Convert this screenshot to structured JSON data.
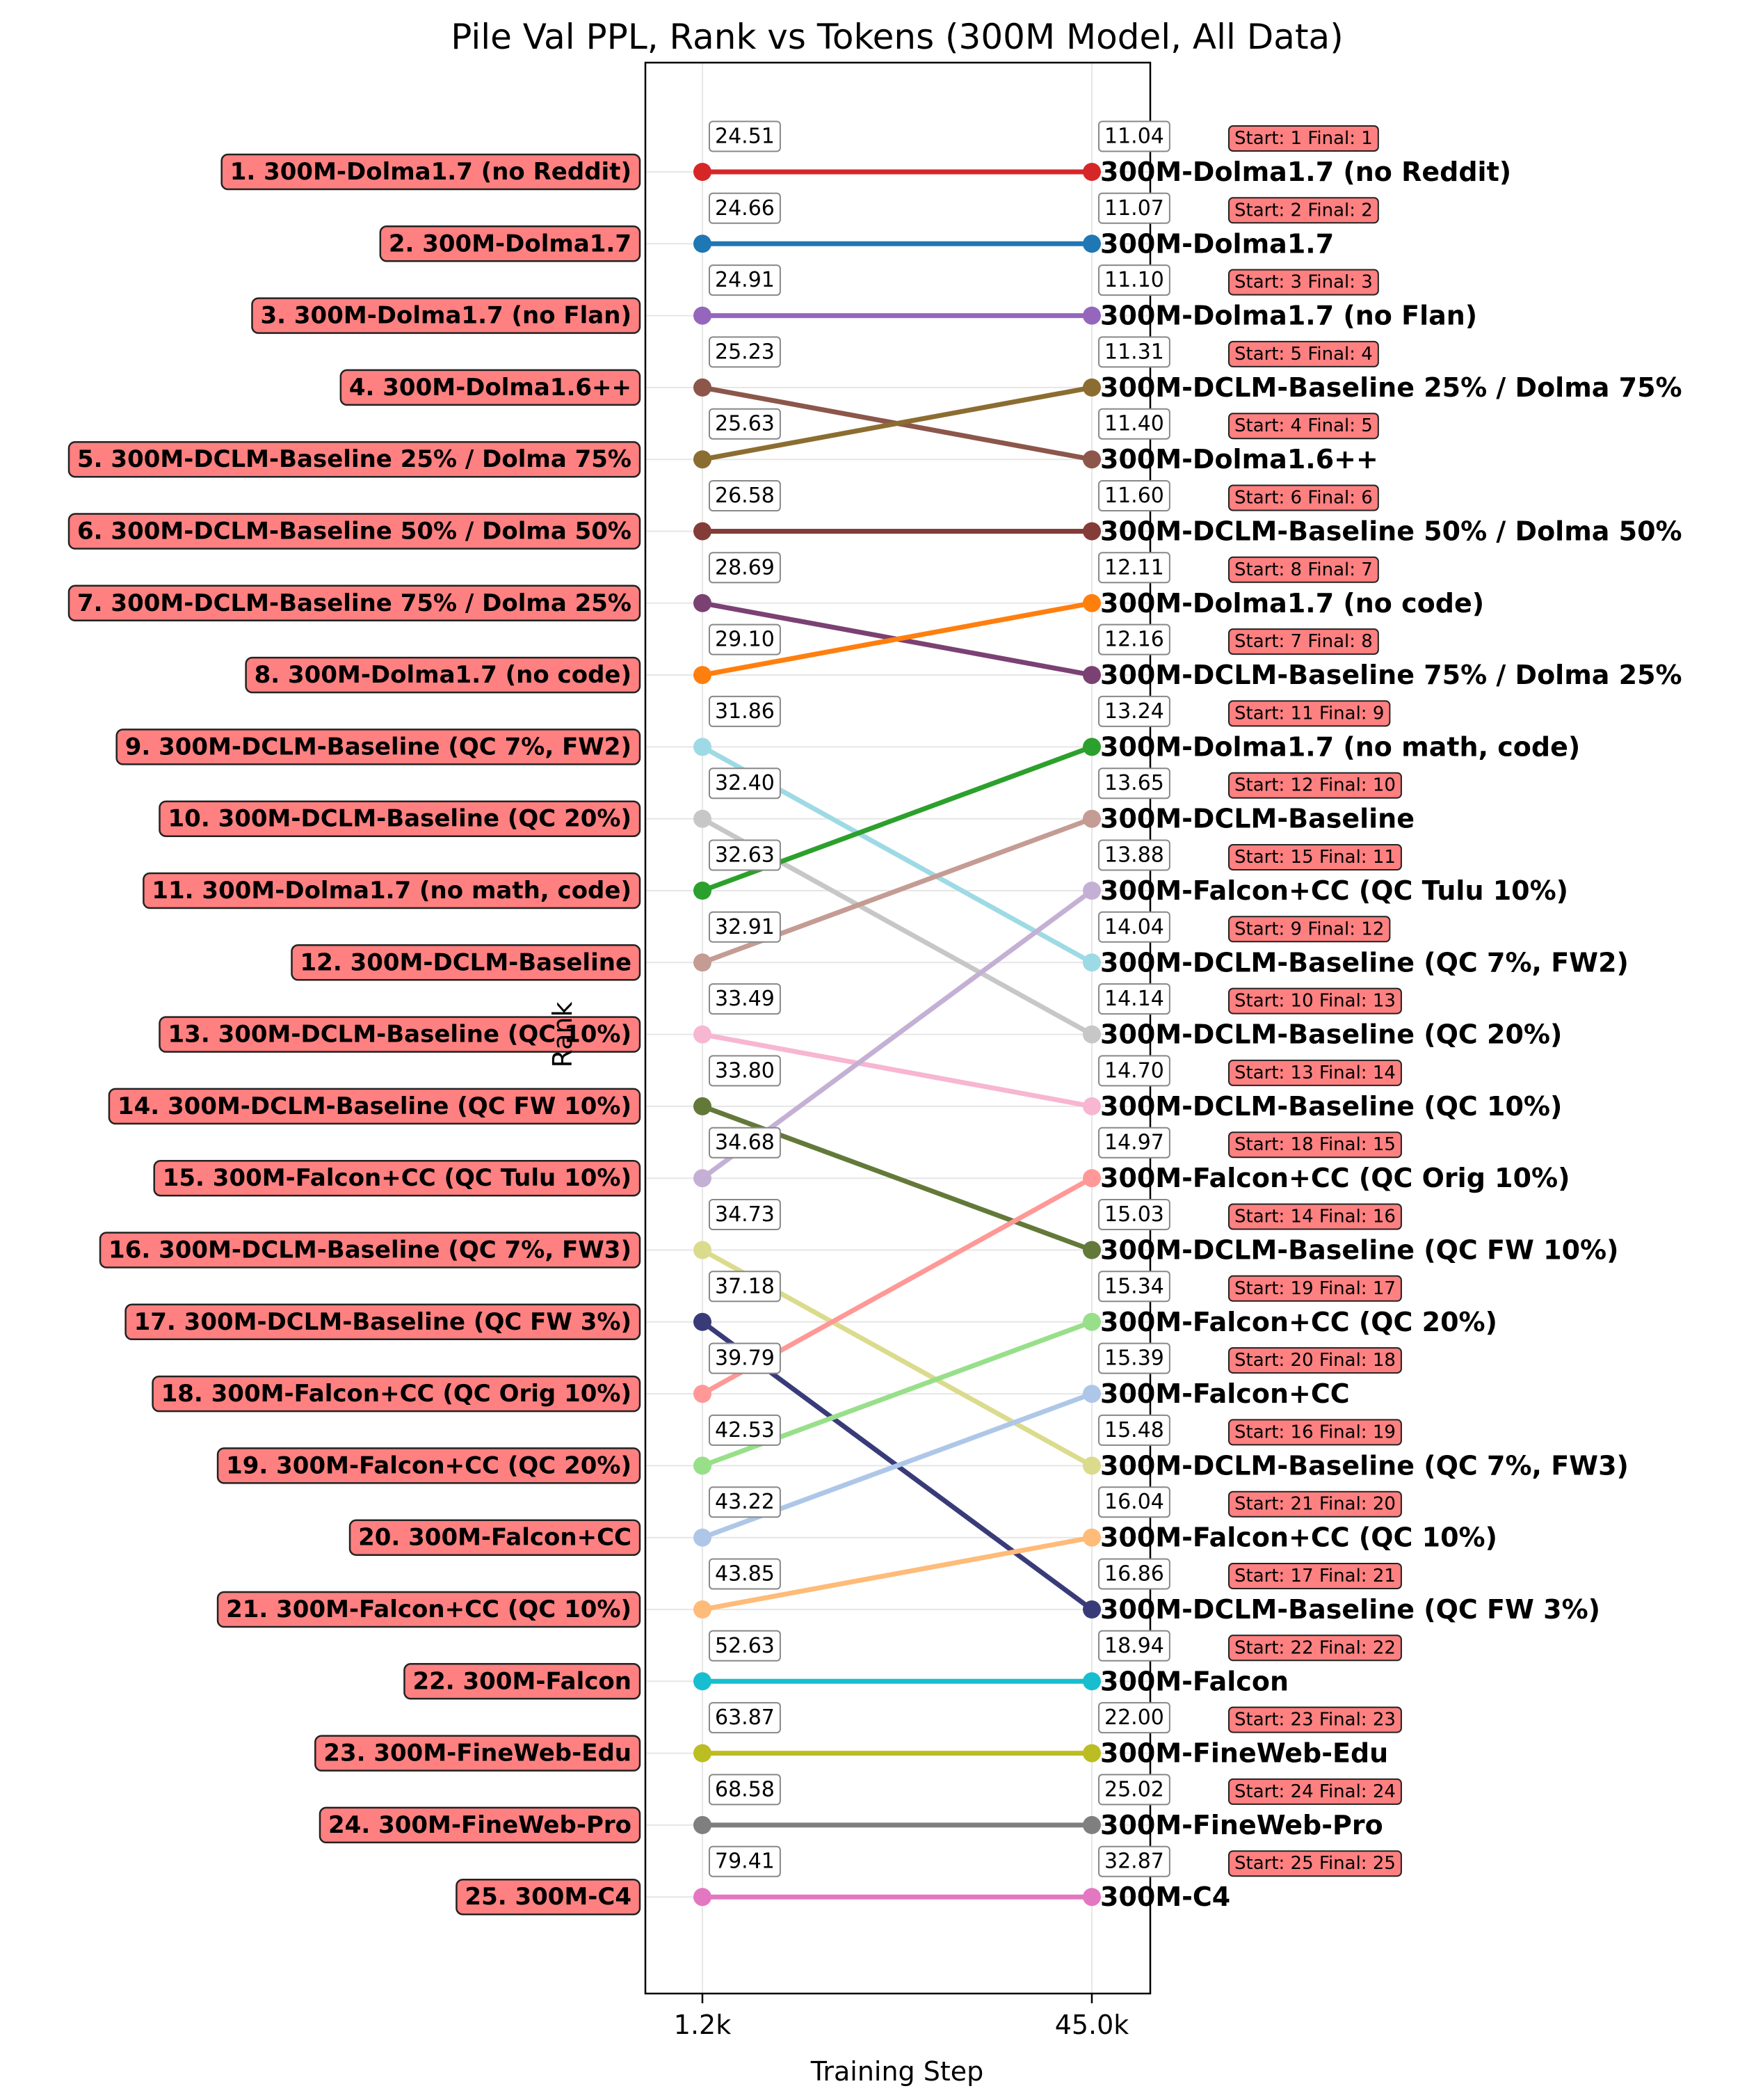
{
  "chart_data": {
    "type": "line",
    "title": "Pile Val PPL, Rank vs Tokens (300M Model, All Data)",
    "xlabel": "Training Step",
    "ylabel": "Rank",
    "x": [
      "1.2k",
      "45.0k"
    ],
    "ylim": [
      27,
      0
    ],
    "grid": true,
    "colors": {
      "label_box_fill": "#ff8080",
      "badge_fill": "#ff8080",
      "value_box_edge": "#888888"
    },
    "series": [
      {
        "name": "300M-Dolma1.7 (no Reddit)",
        "left_label": "1. 300M-Dolma1.7 (no Reddit)",
        "start_rank": 1,
        "final_rank": 1,
        "start_value": "24.51",
        "final_value": "11.04",
        "badge": "Start: 1 Final: 1",
        "color": "#d62728"
      },
      {
        "name": "300M-Dolma1.7",
        "left_label": "2. 300M-Dolma1.7",
        "start_rank": 2,
        "final_rank": 2,
        "start_value": "24.66",
        "final_value": "11.07",
        "badge": "Start: 2 Final: 2",
        "color": "#1f77b4"
      },
      {
        "name": "300M-Dolma1.7 (no Flan)",
        "left_label": "3. 300M-Dolma1.7 (no Flan)",
        "start_rank": 3,
        "final_rank": 3,
        "start_value": "24.91",
        "final_value": "11.10",
        "badge": "Start: 3 Final: 3",
        "color": "#9467bd"
      },
      {
        "name": "300M-Dolma1.6++",
        "left_label": "4. 300M-Dolma1.6++",
        "start_rank": 4,
        "final_rank": 5,
        "start_value": "25.23",
        "final_value": "11.40",
        "badge": "Start: 4 Final: 5",
        "color": "#8c564b"
      },
      {
        "name": "300M-DCLM-Baseline 25% / Dolma 75%",
        "left_label": "5. 300M-DCLM-Baseline 25% / Dolma 75%",
        "start_rank": 5,
        "final_rank": 4,
        "start_value": "25.63",
        "final_value": "11.31",
        "badge": "Start: 5 Final: 4",
        "color": "#8c6d31"
      },
      {
        "name": "300M-DCLM-Baseline 50% / Dolma 50%",
        "left_label": "6. 300M-DCLM-Baseline 50% / Dolma 50%",
        "start_rank": 6,
        "final_rank": 6,
        "start_value": "26.58",
        "final_value": "11.60",
        "badge": "Start: 6 Final: 6",
        "color": "#843c39"
      },
      {
        "name": "300M-DCLM-Baseline 75% / Dolma 25%",
        "left_label": "7. 300M-DCLM-Baseline 75% / Dolma 25%",
        "start_rank": 7,
        "final_rank": 8,
        "start_value": "28.69",
        "final_value": "12.16",
        "badge": "Start: 7 Final: 8",
        "color": "#7b4173"
      },
      {
        "name": "300M-Dolma1.7 (no code)",
        "left_label": "8. 300M-Dolma1.7 (no code)",
        "start_rank": 8,
        "final_rank": 7,
        "start_value": "29.10",
        "final_value": "12.11",
        "badge": "Start: 8 Final: 7",
        "color": "#ff7f0e"
      },
      {
        "name": "300M-DCLM-Baseline (QC 7%, FW2)",
        "left_label": "9. 300M-DCLM-Baseline (QC 7%, FW2)",
        "start_rank": 9,
        "final_rank": 12,
        "start_value": "31.86",
        "final_value": "14.04",
        "badge": "Start: 9 Final: 12",
        "color": "#9edae5"
      },
      {
        "name": "300M-DCLM-Baseline (QC 20%)",
        "left_label": "10. 300M-DCLM-Baseline (QC 20%)",
        "start_rank": 10,
        "final_rank": 13,
        "start_value": "32.40",
        "final_value": "14.14",
        "badge": "Start: 10 Final: 13",
        "color": "#c7c7c7"
      },
      {
        "name": "300M-Dolma1.7 (no math, code)",
        "left_label": "11. 300M-Dolma1.7 (no math, code)",
        "start_rank": 11,
        "final_rank": 9,
        "start_value": "32.63",
        "final_value": "13.24",
        "badge": "Start: 11 Final: 9",
        "color": "#2ca02c"
      },
      {
        "name": "300M-DCLM-Baseline",
        "left_label": "12. 300M-DCLM-Baseline",
        "start_rank": 12,
        "final_rank": 10,
        "start_value": "32.91",
        "final_value": "13.65",
        "badge": "Start: 12 Final: 10",
        "color": "#c49c94"
      },
      {
        "name": "300M-DCLM-Baseline (QC 10%)",
        "left_label": "13. 300M-DCLM-Baseline (QC 10%)",
        "start_rank": 13,
        "final_rank": 14,
        "start_value": "33.49",
        "final_value": "14.70",
        "badge": "Start: 13 Final: 14",
        "color": "#f7b6d2"
      },
      {
        "name": "300M-DCLM-Baseline (QC FW 10%)",
        "left_label": "14. 300M-DCLM-Baseline (QC FW 10%)",
        "start_rank": 14,
        "final_rank": 16,
        "start_value": "33.80",
        "final_value": "15.03",
        "badge": "Start: 14 Final: 16",
        "color": "#637939"
      },
      {
        "name": "300M-Falcon+CC (QC Tulu 10%)",
        "left_label": "15. 300M-Falcon+CC (QC Tulu 10%)",
        "start_rank": 15,
        "final_rank": 11,
        "start_value": "34.68",
        "final_value": "13.88",
        "badge": "Start: 15 Final: 11",
        "color": "#c5b0d5"
      },
      {
        "name": "300M-DCLM-Baseline (QC 7%, FW3)",
        "left_label": "16. 300M-DCLM-Baseline (QC 7%, FW3)",
        "start_rank": 16,
        "final_rank": 19,
        "start_value": "34.73",
        "final_value": "15.48",
        "badge": "Start: 16 Final: 19",
        "color": "#dbdb8d"
      },
      {
        "name": "300M-DCLM-Baseline (QC FW 3%)",
        "left_label": "17. 300M-DCLM-Baseline (QC FW 3%)",
        "start_rank": 17,
        "final_rank": 21,
        "start_value": "37.18",
        "final_value": "16.86",
        "badge": "Start: 17 Final: 21",
        "color": "#393b79"
      },
      {
        "name": "300M-Falcon+CC (QC Orig 10%)",
        "left_label": "18. 300M-Falcon+CC (QC Orig 10%)",
        "start_rank": 18,
        "final_rank": 15,
        "start_value": "39.79",
        "final_value": "14.97",
        "badge": "Start: 18 Final: 15",
        "color": "#ff9896"
      },
      {
        "name": "300M-Falcon+CC (QC 20%)",
        "left_label": "19. 300M-Falcon+CC (QC 20%)",
        "start_rank": 19,
        "final_rank": 17,
        "start_value": "42.53",
        "final_value": "15.34",
        "badge": "Start: 19 Final: 17",
        "color": "#98df8a"
      },
      {
        "name": "300M-Falcon+CC",
        "left_label": "20. 300M-Falcon+CC",
        "start_rank": 20,
        "final_rank": 18,
        "start_value": "43.22",
        "final_value": "15.39",
        "badge": "Start: 20 Final: 18",
        "color": "#aec7e8"
      },
      {
        "name": "300M-Falcon+CC (QC 10%)",
        "left_label": "21. 300M-Falcon+CC (QC 10%)",
        "start_rank": 21,
        "final_rank": 20,
        "start_value": "43.85",
        "final_value": "16.04",
        "badge": "Start: 21 Final: 20",
        "color": "#ffbb78"
      },
      {
        "name": "300M-Falcon",
        "left_label": "22. 300M-Falcon",
        "start_rank": 22,
        "final_rank": 22,
        "start_value": "52.63",
        "final_value": "18.94",
        "badge": "Start: 22 Final: 22",
        "color": "#17becf"
      },
      {
        "name": "300M-FineWeb-Edu",
        "left_label": "23. 300M-FineWeb-Edu",
        "start_rank": 23,
        "final_rank": 23,
        "start_value": "63.87",
        "final_value": "22.00",
        "badge": "Start: 23 Final: 23",
        "color": "#bcbd22"
      },
      {
        "name": "300M-FineWeb-Pro",
        "left_label": "24. 300M-FineWeb-Pro",
        "start_rank": 24,
        "final_rank": 24,
        "start_value": "68.58",
        "final_value": "25.02",
        "badge": "Start: 24 Final: 24",
        "color": "#7f7f7f"
      },
      {
        "name": "300M-C4",
        "left_label": "25. 300M-C4",
        "start_rank": 25,
        "final_rank": 25,
        "start_value": "79.41",
        "final_value": "32.87",
        "badge": "Start: 25 Final: 25",
        "color": "#e377c2"
      }
    ]
  }
}
